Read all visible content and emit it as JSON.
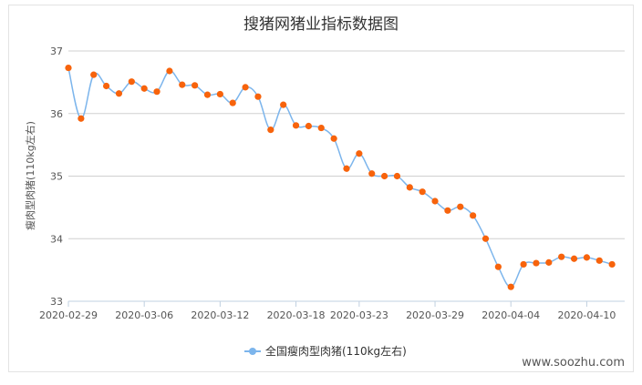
{
  "watermark": "www.soozhu.com",
  "chart_data": {
    "type": "line",
    "title": "搜猪网猪业指标数据图",
    "ylabel": "瘦肉型肉猪(110kg左右)",
    "xlabel": "",
    "ylim": [
      33,
      37
    ],
    "yticks": [
      33,
      34,
      35,
      36,
      37
    ],
    "xlim": [
      "2020-02-29",
      "2020-04-13"
    ],
    "xticks": [
      "2020-02-29",
      "2020-03-06",
      "2020-03-12",
      "2020-03-18",
      "2020-03-23",
      "2020-03-29",
      "2020-04-04",
      "2020-04-10"
    ],
    "grid": true,
    "legend_position": "bottom-center",
    "line_color": "#7cb5ec",
    "marker_color": "#f7630c",
    "series": [
      {
        "name": "全国瘦肉型肉猪(110kg左右)",
        "x": [
          "2020-02-29",
          "2020-03-01",
          "2020-03-02",
          "2020-03-03",
          "2020-03-04",
          "2020-03-05",
          "2020-03-06",
          "2020-03-07",
          "2020-03-08",
          "2020-03-09",
          "2020-03-10",
          "2020-03-11",
          "2020-03-12",
          "2020-03-13",
          "2020-03-14",
          "2020-03-15",
          "2020-03-16",
          "2020-03-17",
          "2020-03-18",
          "2020-03-19",
          "2020-03-20",
          "2020-03-21",
          "2020-03-22",
          "2020-03-23",
          "2020-03-24",
          "2020-03-25",
          "2020-03-26",
          "2020-03-27",
          "2020-03-28",
          "2020-03-29",
          "2020-03-30",
          "2020-03-31",
          "2020-04-01",
          "2020-04-02",
          "2020-04-03",
          "2020-04-04",
          "2020-04-05",
          "2020-04-06",
          "2020-04-07",
          "2020-04-08",
          "2020-04-09",
          "2020-04-10",
          "2020-04-11",
          "2020-04-12"
        ],
        "values": [
          36.73,
          35.92,
          36.62,
          36.44,
          36.32,
          36.51,
          36.4,
          36.35,
          36.68,
          36.46,
          36.45,
          36.3,
          36.31,
          36.17,
          36.42,
          36.27,
          35.74,
          36.14,
          35.81,
          35.8,
          35.77,
          35.6,
          35.12,
          35.36,
          35.04,
          35.0,
          35.0,
          34.82,
          34.75,
          34.6,
          34.45,
          34.51,
          34.37,
          34.0,
          33.55,
          33.23,
          33.59,
          33.61,
          33.62,
          33.71,
          33.68,
          33.7,
          33.65,
          33.59
        ]
      }
    ]
  }
}
